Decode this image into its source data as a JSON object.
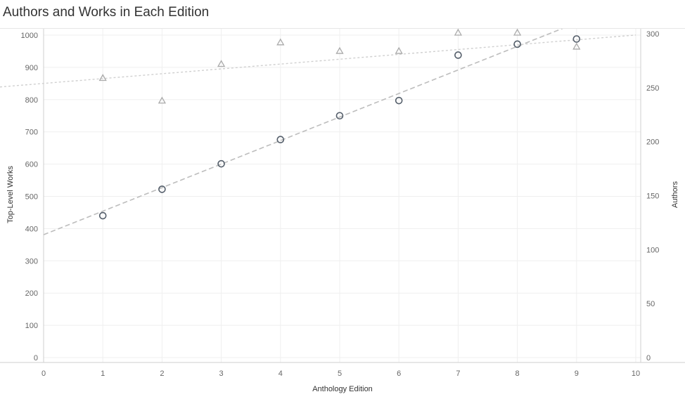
{
  "title": "Authors and Works in Each Edition",
  "colors": {
    "works_marker": "#555f6b",
    "authors_marker": "#aaaaaa",
    "works_trend": "#bdbdbd",
    "authors_trend": "#d0d0d0",
    "grid": "#efefef",
    "axis": "#cfcfcf"
  },
  "chart_data": {
    "type": "scatter",
    "title": "Authors and Works in Each Edition",
    "xlabel": "Anthology Edition",
    "ylabel_left": "Top-Level Works",
    "ylabel_right": "Authors",
    "xlim": [
      0,
      10
    ],
    "ylim_left": [
      0,
      1000
    ],
    "ylim_right": [
      0,
      300
    ],
    "x_ticks": [
      "0",
      "1",
      "2",
      "3",
      "4",
      "5",
      "6",
      "7",
      "8",
      "9",
      "10"
    ],
    "y_left_ticks": [
      "0",
      "100",
      "200",
      "300",
      "400",
      "500",
      "600",
      "700",
      "800",
      "900",
      "1000"
    ],
    "y_right_ticks": [
      "0",
      "50",
      "100",
      "150",
      "200",
      "250",
      "300"
    ],
    "grid": true,
    "series": [
      {
        "name": "Top-Level Works",
        "axis": "left",
        "marker": "circle",
        "x": [
          1,
          2,
          3,
          4,
          5,
          6,
          7,
          8,
          9
        ],
        "values": [
          440,
          522,
          601,
          676,
          750,
          797,
          938,
          972,
          988
        ],
        "trend": [
          381,
          73
        ]
      },
      {
        "name": "Authors",
        "axis": "right",
        "marker": "triangle",
        "x": [
          1,
          2,
          3,
          4,
          5,
          6,
          7,
          8,
          9
        ],
        "values": [
          259,
          238,
          272,
          292,
          284,
          284,
          301,
          301,
          288
        ],
        "trend": [
          251,
          4.78
        ]
      }
    ]
  }
}
